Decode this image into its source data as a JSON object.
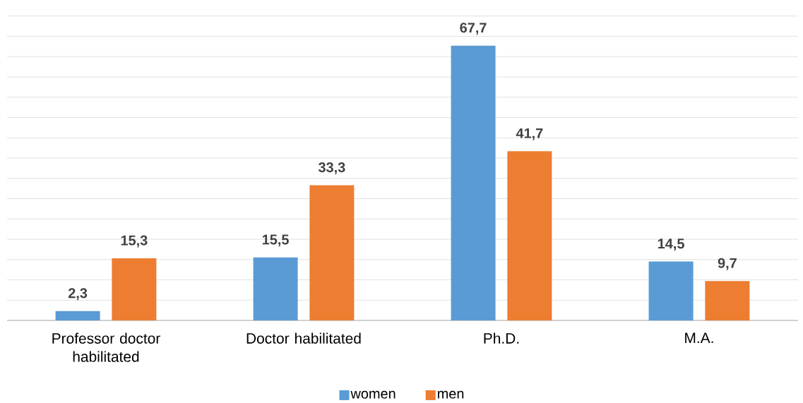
{
  "chart_data": {
    "type": "bar",
    "categories": [
      "Professor doctor habilitated",
      "Doctor habilitated",
      "Ph.D.",
      "M.A."
    ],
    "series": [
      {
        "name": "women",
        "color": "#5b9bd5",
        "values": [
          2.3,
          15.5,
          67.7,
          14.5
        ],
        "value_labels": [
          "2,3",
          "15,5",
          "67,7",
          "14,5"
        ]
      },
      {
        "name": "men",
        "color": "#ed7d31",
        "values": [
          15.3,
          33.3,
          41.7,
          9.7
        ],
        "value_labels": [
          "15,3",
          "33,3",
          "41,7",
          "9,7"
        ]
      }
    ],
    "grid": "y",
    "legend": "bottom",
    "tick_labels": "x"
  }
}
